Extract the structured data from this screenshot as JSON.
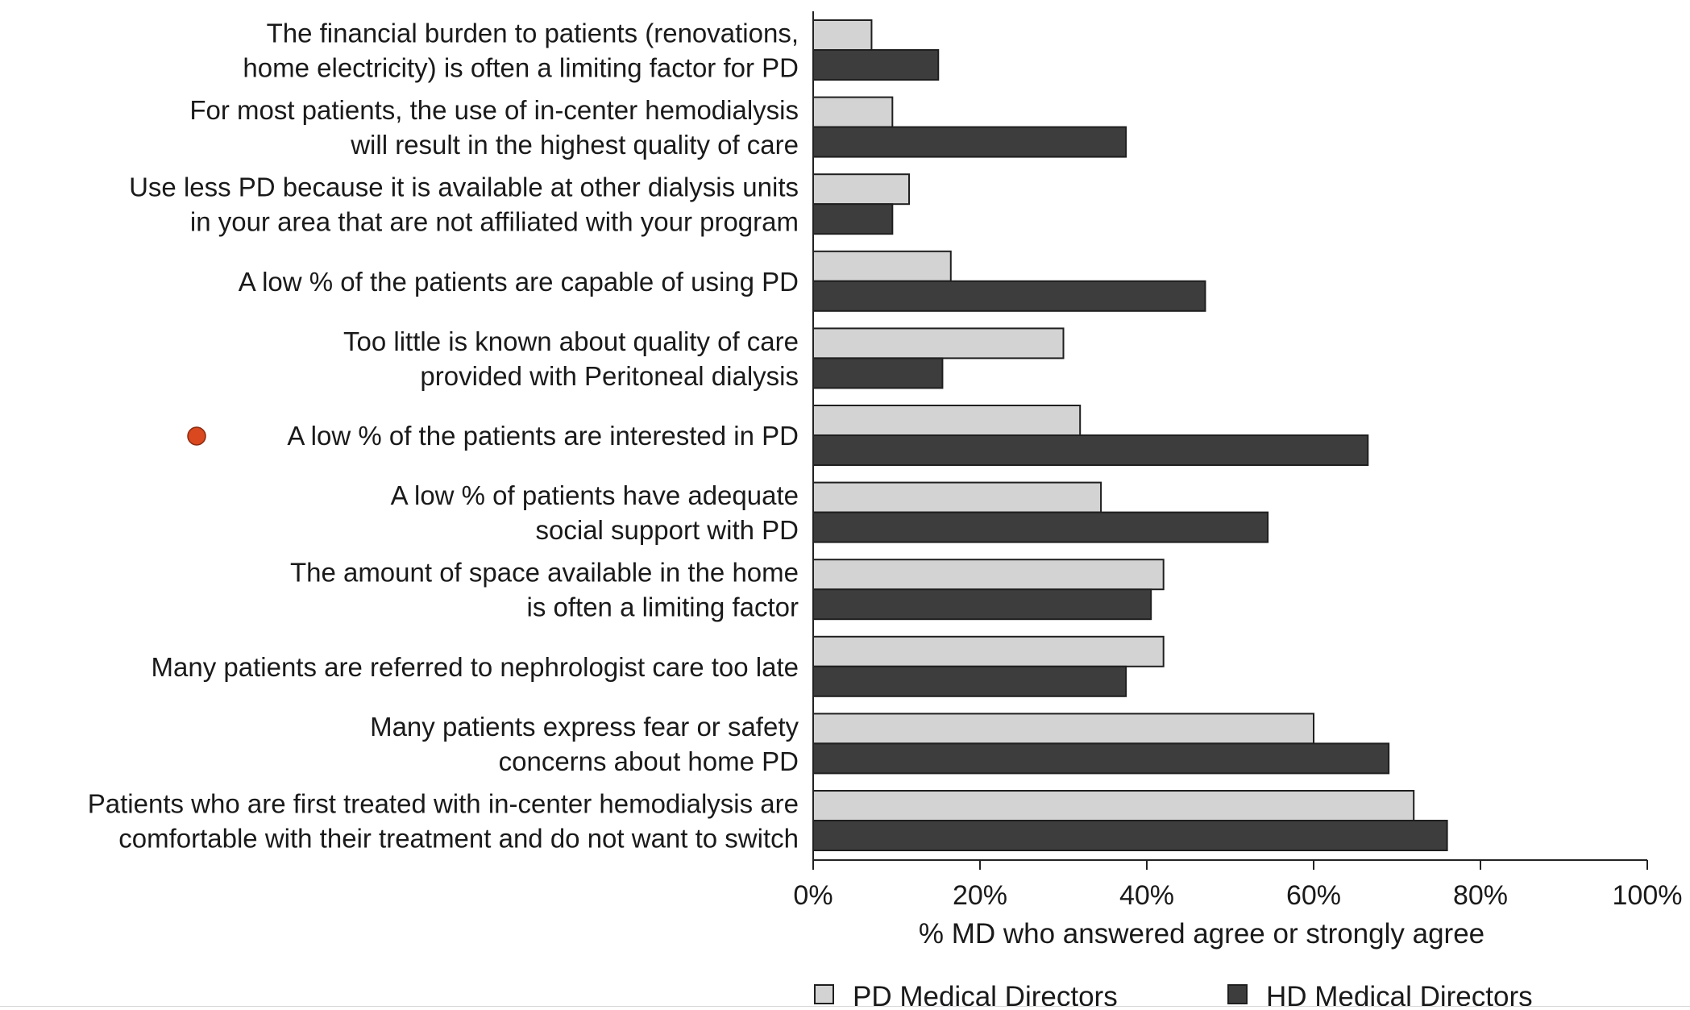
{
  "chart_data": {
    "type": "bar",
    "orientation": "horizontal",
    "categories": [
      [
        "The financial burden to patients (renovations,",
        "home electricity) is often a limiting factor for PD"
      ],
      [
        "For most patients, the use of in-center hemodialysis",
        "will result in the highest quality of care"
      ],
      [
        "Use less PD because it is available at other dialysis units",
        "in your area that are not affiliated with your program"
      ],
      [
        "A low % of the patients are capable of using PD"
      ],
      [
        "Too little is known about quality of care",
        "provided with Peritoneal dialysis"
      ],
      [
        "A low % of the patients are interested in PD"
      ],
      [
        "A low % of patients have adequate",
        "social support with PD"
      ],
      [
        "The amount of space available in the home",
        "is often a limiting factor"
      ],
      [
        "Many patients are referred to nephrologist care too late"
      ],
      [
        "Many patients express fear or safety",
        "concerns about home PD"
      ],
      [
        "Patients who are first treated with in-center hemodialysis are",
        "comfortable with their treatment and do not want to switch"
      ]
    ],
    "highlighted_category_index": 5,
    "series": [
      {
        "name": "PD Medical Directors",
        "color": "#d3d3d3",
        "values": [
          7,
          9.5,
          11.5,
          16.5,
          30,
          32,
          34.5,
          42,
          42,
          60,
          72
        ]
      },
      {
        "name": "HD Medical Directors",
        "color": "#3d3d3d",
        "values": [
          15,
          37.5,
          9.5,
          47,
          15.5,
          66.5,
          54.5,
          40.5,
          37.5,
          69,
          76
        ]
      }
    ],
    "xlabel": "% MD who answered agree or strongly agree",
    "xlim": [
      0,
      100
    ],
    "xticks": [
      "0%",
      "20%",
      "40%",
      "60%",
      "80%",
      "100%"
    ],
    "grid": false,
    "legend_position": "bottom",
    "marker_color": "#d9481f"
  }
}
